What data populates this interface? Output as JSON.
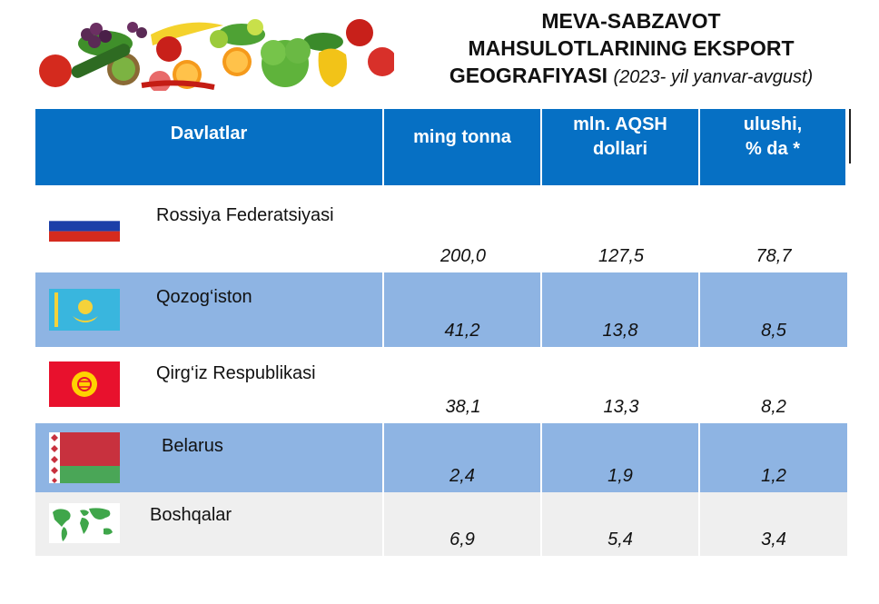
{
  "title": {
    "line1": "MEVA-SABZAVOT",
    "line2": "MAHSULOTLARINING EKSPORT",
    "line3": "GEOGRAFIYASI",
    "period": "(2023- yil yanvar-avgust)"
  },
  "table": {
    "headers": {
      "country": "Davlatlar",
      "tonnes": "ming tonna",
      "usd_line1": "mln. AQSH",
      "usd_line2": "dollari",
      "share_line1": "ulushi,",
      "share_line2": "% da *"
    },
    "rows": [
      {
        "country": "Rossiya Federatsiyasi",
        "flag": "russia-flag",
        "tonnes": "200,0",
        "usd": "127,5",
        "share": "78,7"
      },
      {
        "country": "Qozog‘iston",
        "flag": "kazakhstan-flag",
        "tonnes": "41,2",
        "usd": "13,8",
        "share": "8,5"
      },
      {
        "country": "Qirg‘iz Respublikasi",
        "flag": "kyrgyzstan-flag",
        "tonnes": "38,1",
        "usd": "13,3",
        "share": "8,2"
      },
      {
        "country": "Belarus",
        "flag": "belarus-flag",
        "tonnes": "2,4",
        "usd": "1,9",
        "share": "1,2"
      },
      {
        "country": "Boshqalar",
        "flag": "world-map-icon",
        "tonnes": "6,9",
        "usd": "5,4",
        "share": "3,4"
      }
    ]
  },
  "colors": {
    "header_blue": "#0670c4",
    "row_blue": "#8eb4e3",
    "row_grey": "#efefef"
  }
}
